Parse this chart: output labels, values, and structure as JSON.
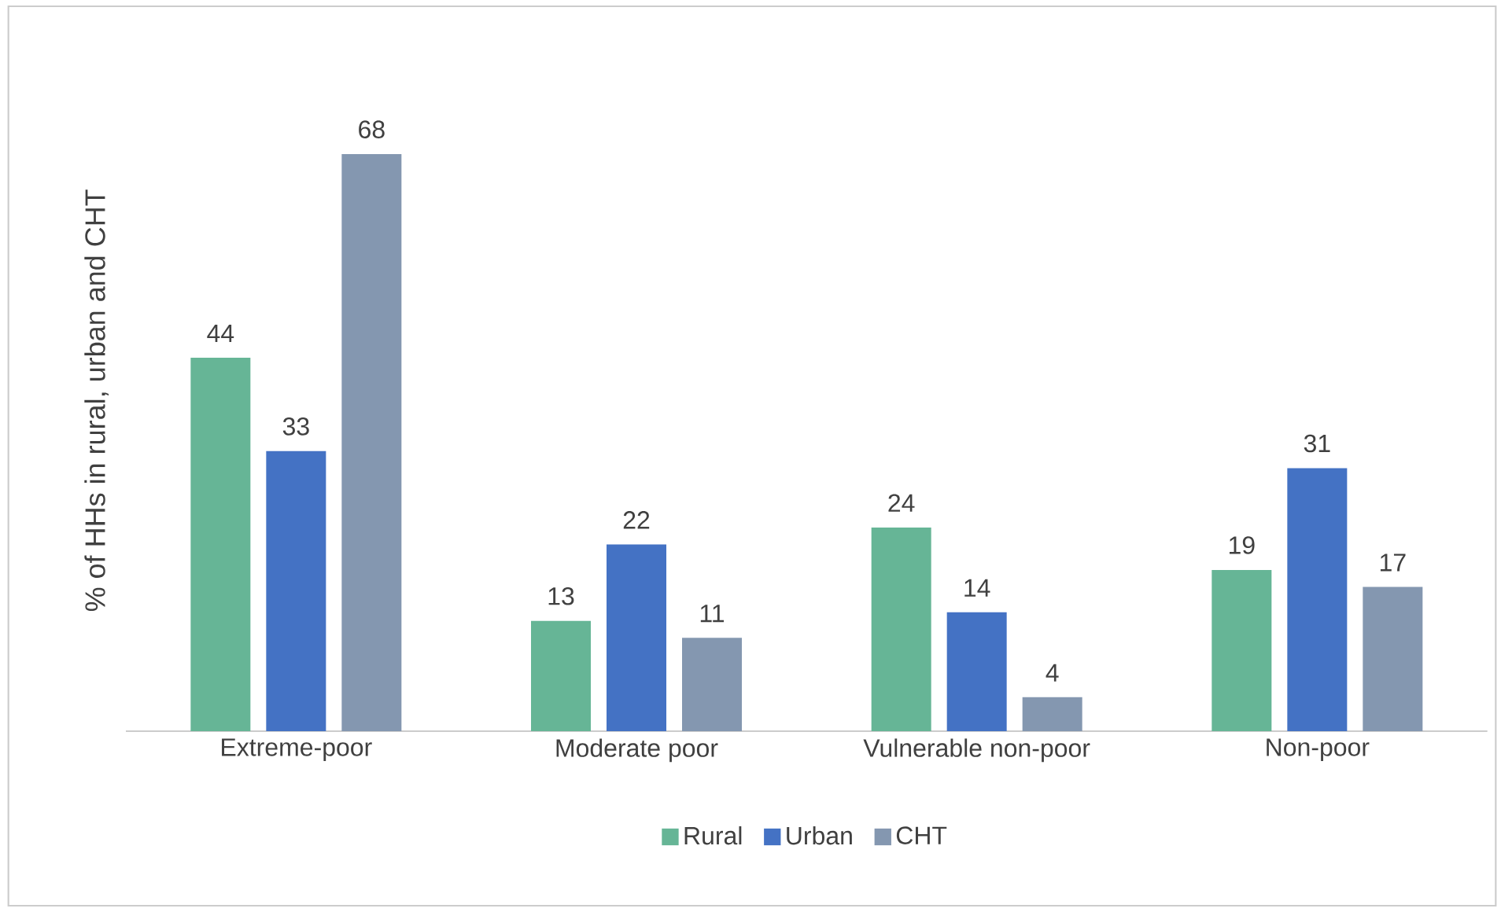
{
  "chart_data": {
    "type": "bar",
    "ylabel": "% of HHs in rural, urban and CHT",
    "categories": [
      "Extreme-poor",
      "Moderate poor",
      "Vulnerable non-poor",
      "Non-poor"
    ],
    "series": [
      {
        "name": "Rural",
        "color": "#66b596",
        "values": [
          44,
          13,
          24,
          19
        ]
      },
      {
        "name": "Urban",
        "color": "#4472c4",
        "values": [
          33,
          22,
          14,
          31
        ]
      },
      {
        "name": "CHT",
        "color": "#8497b0",
        "values": [
          68,
          11,
          4,
          17
        ]
      }
    ],
    "data_labels": true,
    "legend": "bottom",
    "tick_labels": "x"
  }
}
